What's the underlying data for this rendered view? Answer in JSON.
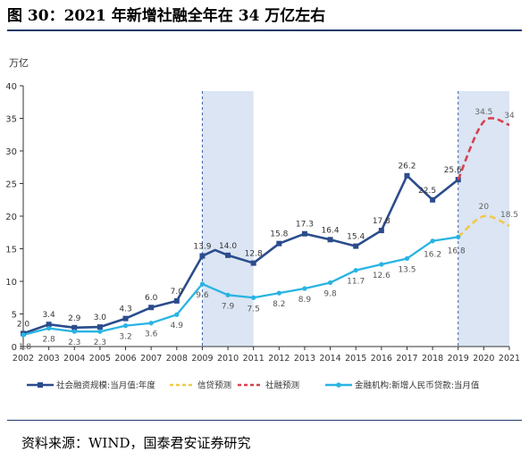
{
  "figure": {
    "title": "图 30：2021 年新增社融全年在 34 万亿左右",
    "source": "资料来源：WIND，国泰君安证券研究"
  },
  "chart_data": {
    "type": "line",
    "y_unit_label": "万亿",
    "ylim": [
      0,
      40
    ],
    "y_ticks": [
      "0",
      "5",
      "10",
      "15",
      "20",
      "25",
      "30",
      "35",
      "40"
    ],
    "x_ticks": [
      "2002",
      "2003",
      "2004",
      "2005",
      "2006",
      "2007",
      "2008",
      "2009",
      "2010",
      "2011",
      "2012",
      "2013",
      "2014",
      "2015",
      "2016",
      "2017",
      "2018",
      "2019",
      "2020",
      "2021"
    ],
    "x_tick_pos": [
      2002,
      2003,
      2004,
      2005,
      2006,
      2007,
      2008,
      2009,
      2010,
      2011,
      2012,
      2013,
      2014,
      2015,
      2016,
      2017,
      2018,
      2019,
      2020,
      2021
    ],
    "grid": false,
    "legend_position": "bottom",
    "shaded_periods": [
      [
        2009,
        2011
      ],
      [
        2019,
        2021
      ]
    ],
    "series": [
      {
        "name": "社会融资规模:当月值:年度",
        "color": "#2b4c8c",
        "style": "solid-square",
        "x": [
          2002,
          2003,
          2004,
          2005,
          2006,
          2007,
          2008,
          2009,
          2009.5,
          2010,
          2011,
          2012,
          2013,
          2014,
          2015,
          2016,
          2017,
          2018,
          2019
        ],
        "y": [
          2.0,
          3.4,
          2.9,
          3.0,
          4.3,
          6.0,
          7.0,
          13.9,
          14.8,
          14.0,
          12.8,
          15.8,
          17.3,
          16.4,
          15.4,
          17.8,
          26.2,
          22.5,
          25.6
        ],
        "labels": [
          "2.0",
          "3.4",
          "2.9",
          "3.0",
          "4.3",
          "6.0",
          "7.0",
          "13.9",
          "",
          "14.0",
          "12.8",
          "15.8",
          "17.3",
          "16.4",
          "15.4",
          "17.8",
          "26.2",
          "22.5",
          "25.6"
        ]
      },
      {
        "name": "信贷预测",
        "color": "#f2c94c",
        "style": "dashed",
        "x": [
          2019,
          2020,
          2021
        ],
        "y": [
          16.8,
          20,
          18.5
        ],
        "labels": [
          "",
          "20",
          "18.5"
        ]
      },
      {
        "name": "社融预测",
        "color": "#d9414f",
        "style": "dashed",
        "x": [
          2019,
          2020,
          2021
        ],
        "y": [
          25.6,
          34.5,
          34
        ],
        "labels": [
          "",
          "34.5",
          "34"
        ]
      },
      {
        "name": "金融机构:新增人民币贷款:当月值",
        "color": "#29b4e3",
        "style": "solid-dot",
        "x": [
          2002,
          2003,
          2004,
          2005,
          2006,
          2007,
          2008,
          2009,
          2010,
          2011,
          2012,
          2013,
          2014,
          2015,
          2016,
          2017,
          2018,
          2019
        ],
        "y": [
          1.8,
          2.8,
          2.3,
          2.3,
          3.2,
          3.6,
          4.9,
          9.6,
          7.9,
          7.5,
          8.2,
          8.9,
          9.8,
          11.7,
          12.6,
          13.5,
          16.2,
          16.8
        ],
        "labels": [
          "1.8",
          "2.8",
          "2.3",
          "2.3",
          "3.2",
          "3.6",
          "4.9",
          "9.6",
          "7.9",
          "7.5",
          "8.2",
          "8.9",
          "9.8",
          "11.7",
          "12.6",
          "13.5",
          "16.2",
          "16.8"
        ]
      }
    ]
  }
}
